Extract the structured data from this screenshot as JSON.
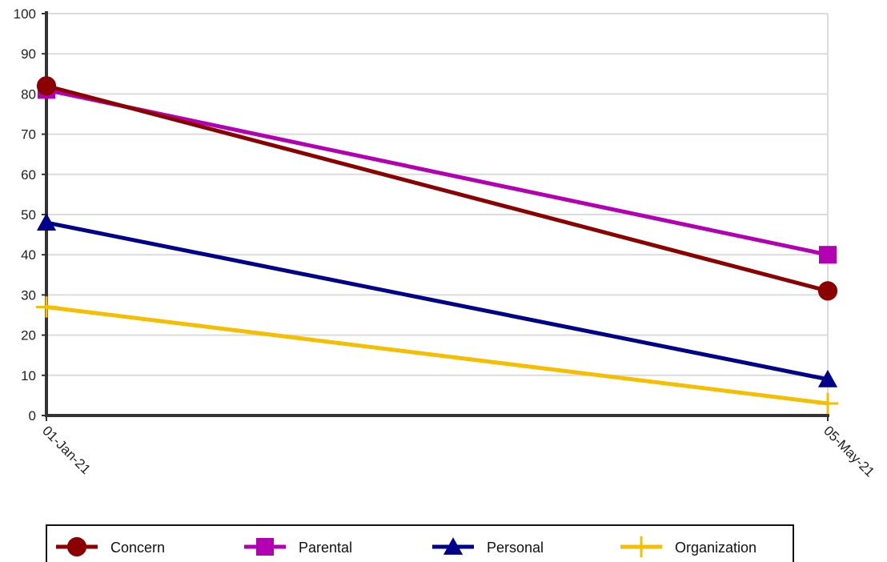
{
  "chart_data": {
    "type": "line",
    "title": "",
    "xlabel": "",
    "ylabel": "",
    "categories": [
      "01-Jan-21",
      "05-May-21"
    ],
    "ylim": [
      0,
      100
    ],
    "yticks": [
      0,
      10,
      20,
      30,
      40,
      50,
      60,
      70,
      80,
      90,
      100
    ],
    "grid": true,
    "legend_position": "bottom",
    "series": [
      {
        "name": "Concern",
        "values": [
          82,
          31
        ],
        "color": "#8b0000",
        "marker": "circle"
      },
      {
        "name": "Parental",
        "values": [
          81,
          40
        ],
        "color": "#b300b3",
        "marker": "square"
      },
      {
        "name": "Personal",
        "values": [
          48,
          9
        ],
        "color": "#00008b",
        "marker": "triangle"
      },
      {
        "name": "Organization",
        "values": [
          27,
          3
        ],
        "color": "#f5be00",
        "marker": "plus"
      }
    ]
  }
}
